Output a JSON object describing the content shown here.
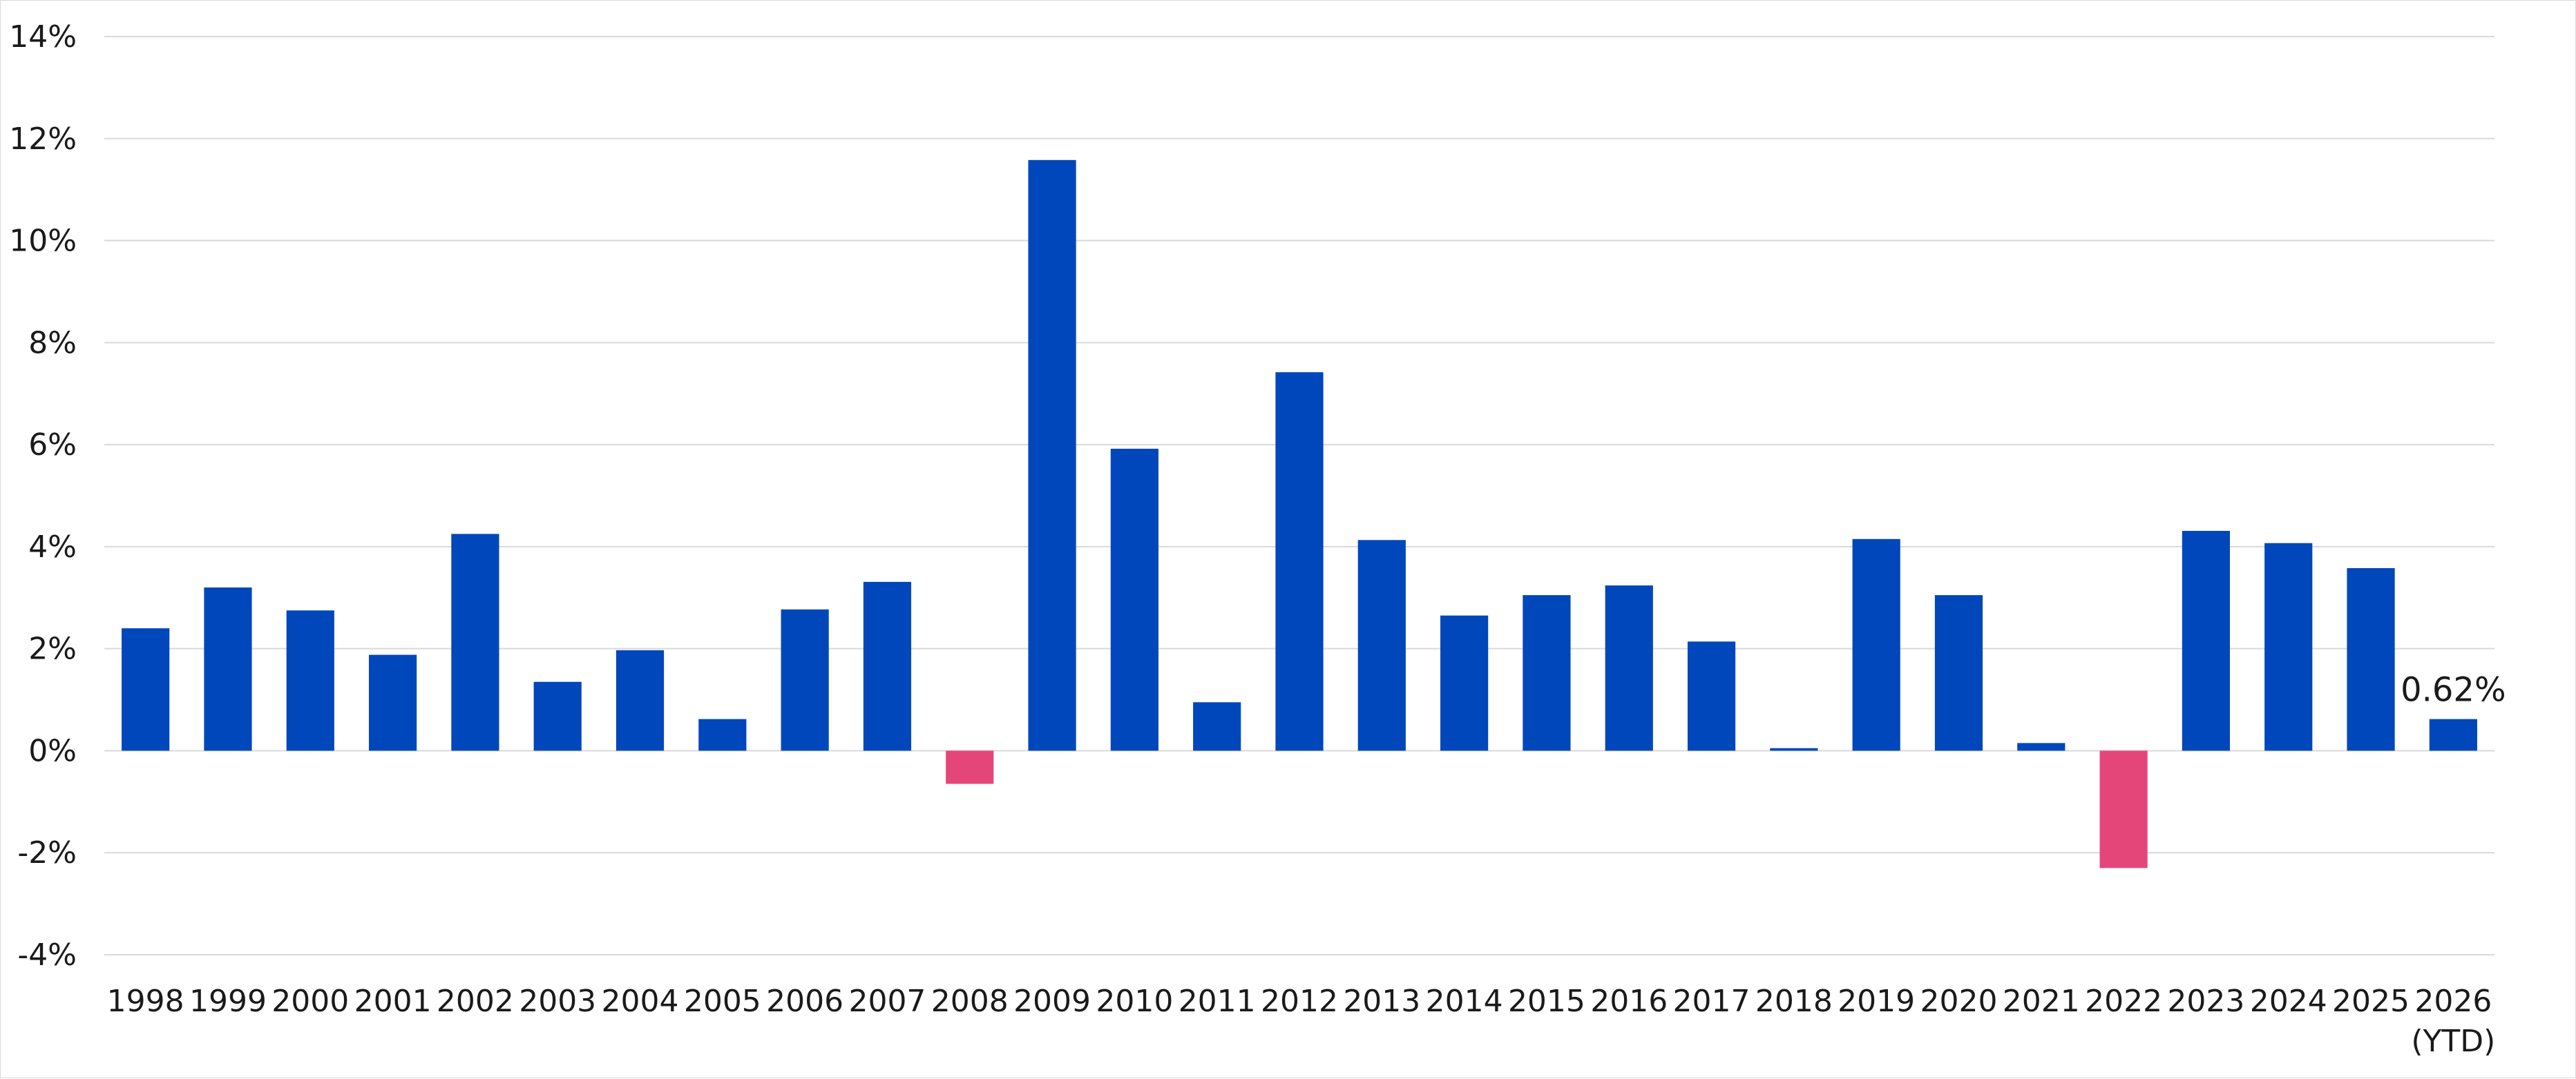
{
  "chart_data": {
    "type": "bar",
    "categories": [
      "1998",
      "1999",
      "2000",
      "2001",
      "2002",
      "2003",
      "2004",
      "2005",
      "2006",
      "2007",
      "2008",
      "2009",
      "2010",
      "2011",
      "2012",
      "2013",
      "2014",
      "2015",
      "2016",
      "2017",
      "2018",
      "2019",
      "2020",
      "2021",
      "2022",
      "2023",
      "2024",
      "2025",
      "2026\n(YTD)"
    ],
    "values": [
      2.4,
      3.2,
      2.75,
      1.88,
      4.25,
      1.35,
      1.97,
      0.62,
      2.77,
      3.31,
      -0.65,
      11.58,
      5.92,
      0.95,
      7.42,
      4.13,
      2.65,
      3.05,
      3.24,
      2.14,
      0.05,
      4.15,
      3.05,
      0.15,
      -2.3,
      4.31,
      4.07,
      3.58,
      0.62
    ],
    "title": "",
    "xlabel": "",
    "ylabel": "",
    "ylim": [
      -4,
      14
    ],
    "yticks": [
      -4,
      -2,
      0,
      2,
      4,
      6,
      8,
      10,
      12,
      14
    ],
    "ytick_labels": [
      "-4%",
      "-2%",
      "0%",
      "2%",
      "4%",
      "6%",
      "8%",
      "10%",
      "12%",
      "14%"
    ],
    "grid": true,
    "legend": "none",
    "annotations": [
      {
        "category_index": 28,
        "text": "0.62%"
      }
    ],
    "colors": {
      "positive": "#0047bb",
      "negative": "#e5467a",
      "grid": "#d9d9d9",
      "text": "#1a1a1a"
    }
  }
}
